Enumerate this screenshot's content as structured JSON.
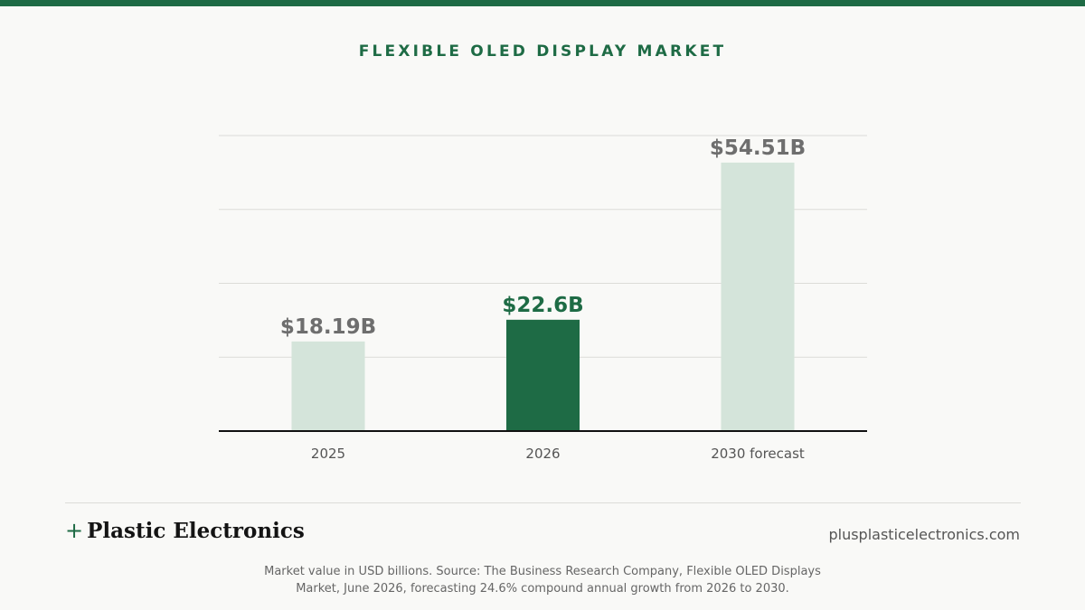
{
  "colors": {
    "accent": "#1e6b45",
    "muted_bar": "#d4e4da",
    "muted_label": "#6e6e6e",
    "gridline": "#dcdcd8",
    "axis": "#111111"
  },
  "chart_data": {
    "type": "bar",
    "title": "FLEXIBLE OLED DISPLAY MARKET",
    "categories": [
      "2025",
      "2026",
      "2030 forecast"
    ],
    "values": [
      18.19,
      22.6,
      54.51
    ],
    "value_labels": [
      "$18.19B",
      "$22.6B",
      "$54.51B"
    ],
    "highlight_index": 1,
    "ylim": [
      0,
      60
    ],
    "grid": true,
    "xlabel": "",
    "ylabel": ""
  },
  "footer": {
    "brand_plus": "+",
    "brand_name": "Plastic Electronics",
    "brand_url": "plusplasticelectronics.com",
    "source_note": "Market value in USD billions. Source: The Business Research Company, Flexible OLED Displays Market, June 2026, forecasting 24.6% compound annual growth from 2026 to 2030."
  }
}
